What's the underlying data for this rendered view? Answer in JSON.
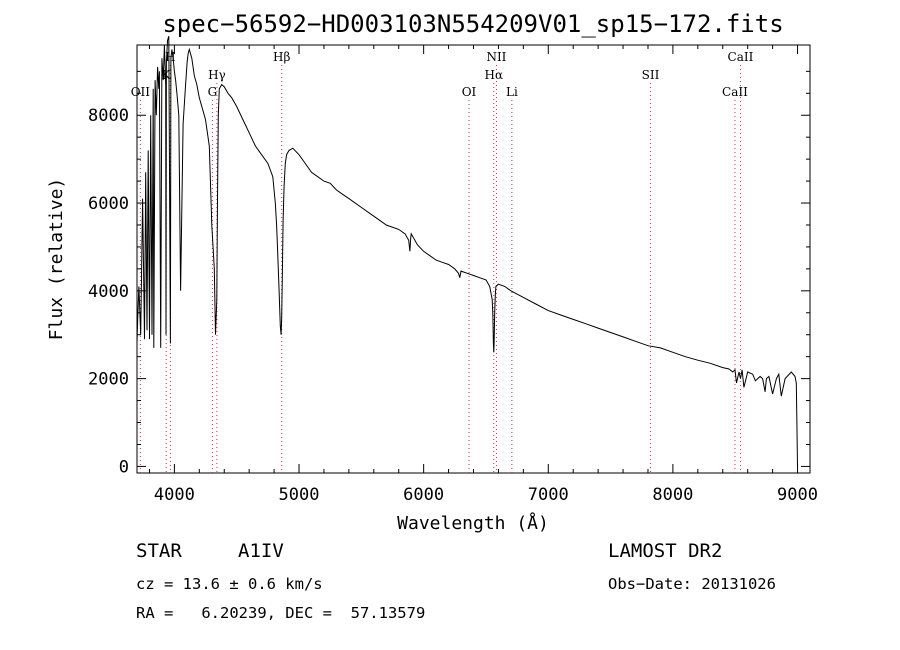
{
  "chart_data": {
    "type": "line",
    "title": "spec−56592−HD003103N554209V01_sp15−172.fits",
    "xlabel": "Wavelength (Å)",
    "ylabel": "Flux (relative)",
    "xlim": [
      3700,
      9100
    ],
    "ylim": [
      -150,
      9600
    ],
    "grid": false,
    "xticks": [
      4000,
      5000,
      6000,
      7000,
      8000,
      9000
    ],
    "xtick_labels": [
      "4000",
      "5000",
      "6000",
      "7000",
      "8000",
      "9000"
    ],
    "yticks": [
      0,
      2000,
      4000,
      6000,
      8000
    ],
    "ytick_labels": [
      "0",
      "2000",
      "4000",
      "6000",
      "8000"
    ],
    "series": [
      {
        "x": [
          3700,
          3705,
          3715,
          3730,
          3745,
          3760,
          3770,
          3780,
          3790,
          3800,
          3810,
          3820,
          3830,
          3835,
          3845,
          3855,
          3865,
          3875,
          3880,
          3890,
          3900,
          3910,
          3920,
          3930,
          3933,
          3936,
          3945,
          3955,
          3968,
          3972,
          3980,
          3990,
          4000,
          4010,
          4020,
          4035,
          4050,
          4070,
          4090,
          4102,
          4110,
          4120,
          4140,
          4160,
          4180,
          4200,
          4220,
          4250,
          4280,
          4300,
          4320,
          4330,
          4340,
          4345,
          4352,
          4360,
          4380,
          4400,
          4430,
          4460,
          4500,
          4550,
          4600,
          4650,
          4700,
          4750,
          4790,
          4810,
          4820,
          4830,
          4840,
          4850,
          4856,
          4861,
          4866,
          4872,
          4880,
          4890,
          4900,
          4920,
          4950,
          5000,
          5050,
          5100,
          5150,
          5200,
          5250,
          5300,
          5350,
          5400,
          5500,
          5600,
          5700,
          5800,
          5850,
          5880,
          5890,
          5896,
          5900,
          5950,
          6000,
          6050,
          6100,
          6150,
          6200,
          6250,
          6280,
          6290,
          6300,
          6350,
          6400,
          6450,
          6500,
          6530,
          6550,
          6555,
          6560,
          6563,
          6566,
          6570,
          6575,
          6580,
          6600,
          6650,
          6700,
          6800,
          6900,
          7000,
          7100,
          7200,
          7300,
          7400,
          7500,
          7600,
          7700,
          7800,
          7900,
          8000,
          8100,
          8200,
          8300,
          8400,
          8450,
          8480,
          8498,
          8510,
          8530,
          8542,
          8555,
          8570,
          8600,
          8640,
          8662,
          8680,
          8700,
          8720,
          8740,
          8750,
          8770,
          8800,
          8830,
          8850,
          8870,
          8900,
          8950,
          8980,
          8990,
          8995,
          9000
        ],
        "y": [
          2800,
          3300,
          4100,
          3000,
          6100,
          2900,
          6700,
          3100,
          7200,
          2900,
          8000,
          3000,
          8600,
          2700,
          8800,
          8000,
          9100,
          8600,
          9000,
          2700,
          9300,
          8800,
          9600,
          8700,
          3000,
          9200,
          9700,
          9800,
          2800,
          9300,
          9500,
          9300,
          9000,
          8800,
          8500,
          8000,
          4000,
          7800,
          8700,
          9200,
          9400,
          9500,
          9300,
          8900,
          8700,
          8400,
          8200,
          7900,
          7300,
          5500,
          4500,
          3000,
          3800,
          5800,
          8000,
          8600,
          8700,
          8650,
          8500,
          8400,
          8200,
          7900,
          7600,
          7300,
          7100,
          6900,
          6600,
          6000,
          5500,
          4800,
          4000,
          3200,
          3000,
          3400,
          4300,
          5600,
          6400,
          6900,
          7100,
          7200,
          7250,
          7100,
          6900,
          6700,
          6600,
          6500,
          6450,
          6300,
          6200,
          6100,
          5900,
          5700,
          5500,
          5400,
          5300,
          5150,
          4900,
          5200,
          5300,
          5050,
          4900,
          4800,
          4700,
          4650,
          4600,
          4500,
          4400,
          4300,
          4450,
          4400,
          4350,
          4300,
          4250,
          4100,
          3800,
          3500,
          2800,
          2600,
          2900,
          3500,
          3900,
          4100,
          4150,
          4100,
          4000,
          3850,
          3700,
          3550,
          3450,
          3350,
          3250,
          3150,
          3050,
          2950,
          2850,
          2750,
          2700,
          2600,
          2500,
          2420,
          2350,
          2250,
          2220,
          2150,
          2200,
          1900,
          2150,
          2000,
          2200,
          1800,
          2150,
          2100,
          1950,
          2000,
          2050,
          2000,
          1700,
          2000,
          2050,
          1650,
          2000,
          2100,
          1600,
          2000,
          2150,
          2050,
          1900,
          1000,
          0
        ]
      }
    ],
    "annotations": {
      "lines": [
        {
          "label": "OII",
          "x": 3727,
          "row": 3
        },
        {
          "label": "H",
          "x": 3968,
          "row": 1
        },
        {
          "label": "K",
          "x": 3934,
          "row": 2
        },
        {
          "label": "Hγ",
          "x": 4341,
          "row": 2
        },
        {
          "label": "G",
          "x": 4305,
          "row": 3
        },
        {
          "label": "Hβ",
          "x": 4861,
          "row": 1
        },
        {
          "label": "NII",
          "x": 6584,
          "row": 1
        },
        {
          "label": "Hα",
          "x": 6563,
          "row": 2
        },
        {
          "label": "OI",
          "x": 6364,
          "row": 3
        },
        {
          "label": "Li",
          "x": 6708,
          "row": 3
        },
        {
          "label": "SII",
          "x": 7820,
          "row": 2
        },
        {
          "label": "CaII",
          "x": 8542,
          "row": 1
        },
        {
          "label": "CaII",
          "x": 8498,
          "row": 3
        }
      ]
    }
  },
  "info": {
    "object_class": "STAR",
    "subclass": "A1IV",
    "survey": "LAMOST DR2",
    "cz": "cz = 13.6 ± 0.6 km/s",
    "obs_date": "Obs−Date: 20131026",
    "radec": "RA =   6.20239, DEC =  57.13579"
  }
}
